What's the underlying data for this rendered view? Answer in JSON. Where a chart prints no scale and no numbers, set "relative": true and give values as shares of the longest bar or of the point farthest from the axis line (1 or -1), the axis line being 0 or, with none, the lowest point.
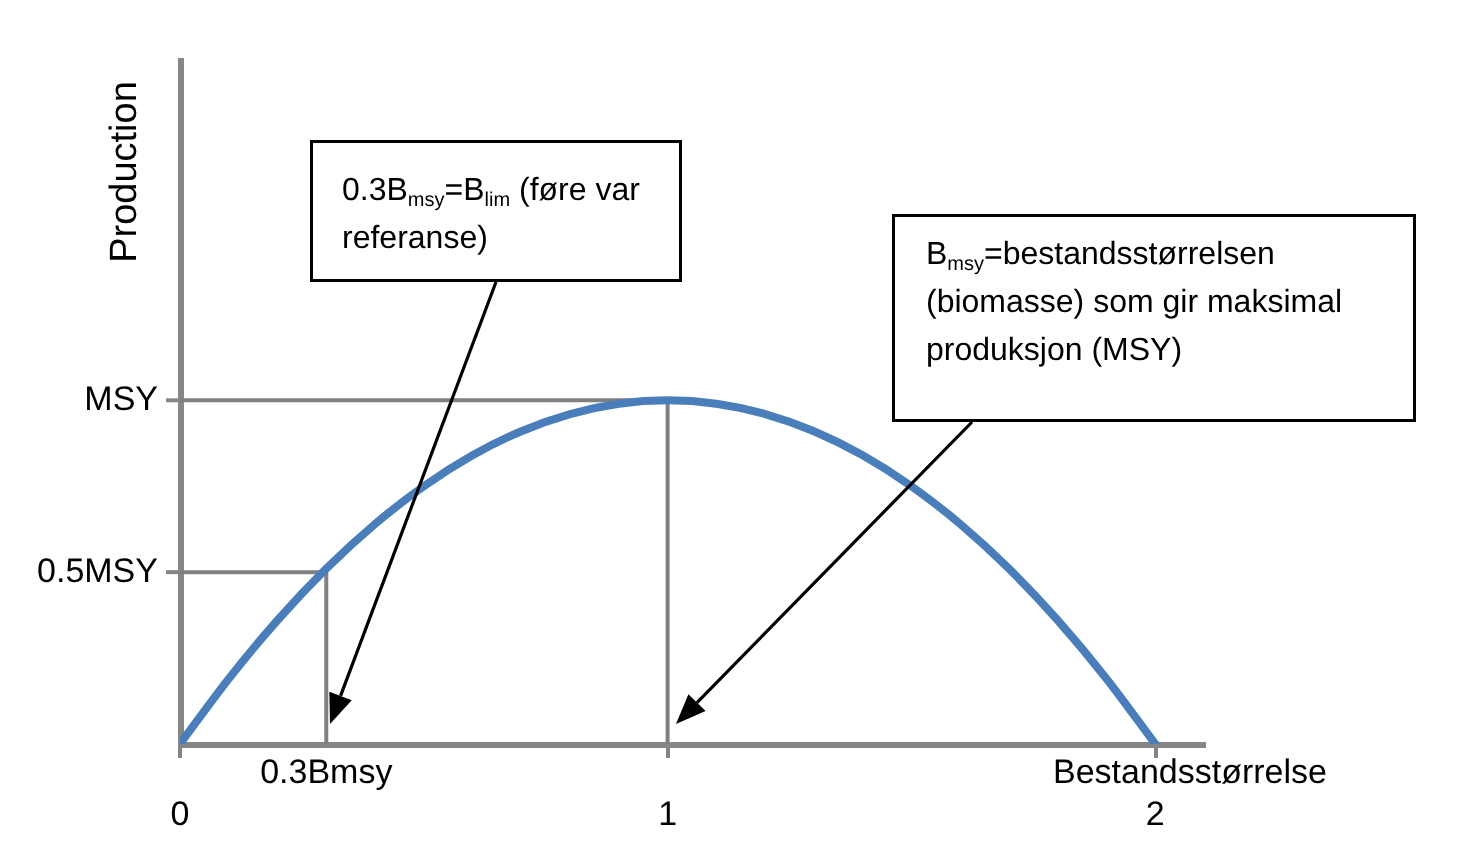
{
  "chart_data": {
    "type": "line",
    "ylabel": "Production",
    "xlabel": "Bestandsstørrelse",
    "relative": true,
    "x": [
      0,
      0.1,
      0.2,
      0.3,
      0.4,
      0.5,
      0.6,
      0.7,
      0.8,
      0.9,
      1,
      1.1,
      1.2,
      1.3,
      1.4,
      1.5,
      1.6,
      1.7,
      1.8,
      1.9,
      2
    ],
    "series": [
      {
        "color": "#4a7ebb",
        "values": [
          0,
          0.19,
          0.36,
          0.51,
          0.64,
          0.75,
          0.84,
          0.91,
          0.96,
          0.99,
          1,
          0.99,
          0.96,
          0.91,
          0.84,
          0.75,
          0.64,
          0.51,
          0.36,
          0.19,
          0
        ]
      },
      {
        "type": "line",
        "color": "#808080",
        "x": [
          0,
          1,
          1
        ],
        "values": [
          1,
          1,
          0
        ]
      },
      {
        "type": "line",
        "color": "#808080",
        "x": [
          0,
          0.3,
          0.3
        ],
        "values": [
          0.5,
          0.5,
          0
        ]
      }
    ],
    "xlim": [
      0,
      2.1
    ],
    "xticks": [
      0,
      1,
      2
    ],
    "marker": "none",
    "annotations": [
      "0.3B$_{msy}$=B$_{lim}$ (føre var referanse)",
      "B$_{msy}$=bestandsstørrelsen (biomasse) som gir maksimal produksjon (MSY)",
      "MSY",
      "0.5MSY",
      "0.3Bmsy"
    ]
  }
}
